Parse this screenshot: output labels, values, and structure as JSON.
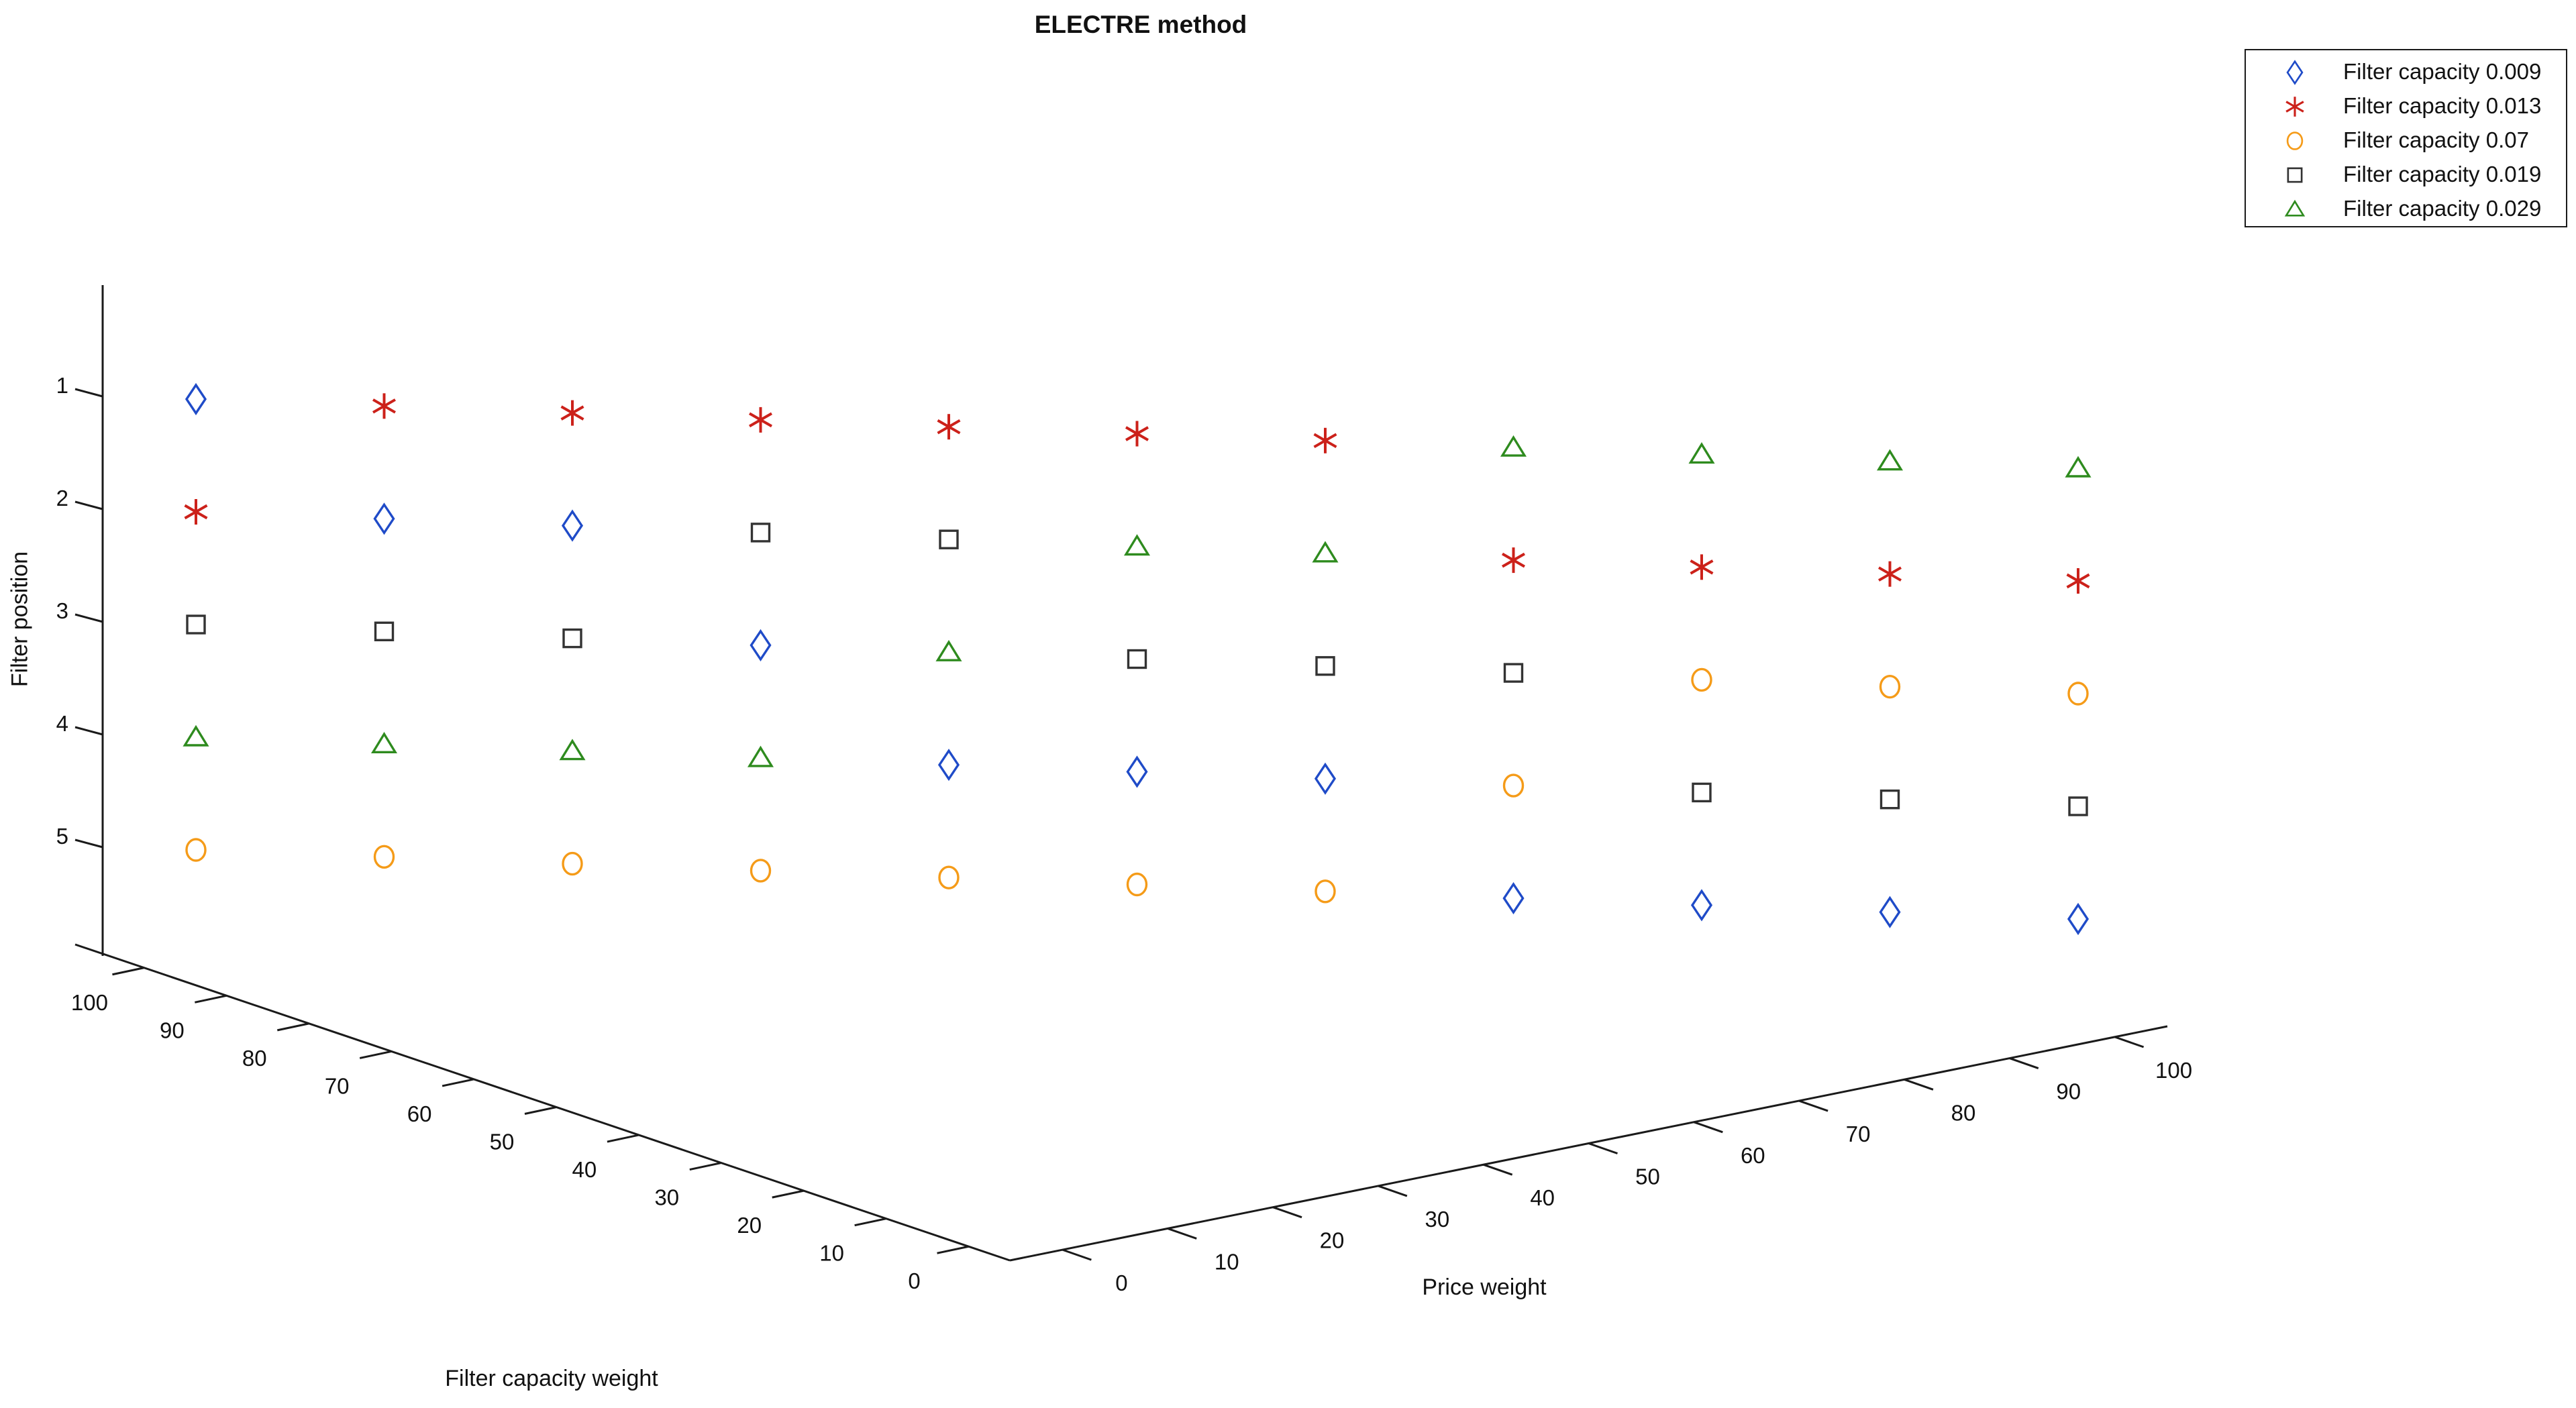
{
  "title": "ELECTRE method",
  "axes": {
    "x": {
      "label": "Price weight",
      "ticks": [
        0,
        10,
        20,
        30,
        40,
        50,
        60,
        70,
        80,
        90,
        100
      ]
    },
    "y": {
      "label": "Filter capacity weight",
      "ticks": [
        100,
        90,
        80,
        70,
        60,
        50,
        40,
        30,
        20,
        10,
        0
      ]
    },
    "z": {
      "label": "Filter position",
      "ticks": [
        1,
        2,
        3,
        4,
        5
      ]
    }
  },
  "legend": {
    "entries": [
      {
        "label": "Filter capacity 0.009",
        "marker": "diamond",
        "color": "#1F4BC8"
      },
      {
        "label": "Filter capacity 0.013",
        "marker": "asterisk",
        "color": "#CC211A"
      },
      {
        "label": "Filter capacity 0.07",
        "marker": "circle",
        "color": "#F59B18"
      },
      {
        "label": "Filter capacity 0.019",
        "marker": "square",
        "color": "#333333"
      },
      {
        "label": "Filter capacity 0.029",
        "marker": "triangle",
        "color": "#2E8B1E"
      }
    ]
  },
  "chart_data": {
    "type": "scatter",
    "subtype": "3d-scatter",
    "title": "ELECTRE method",
    "xlabel": "Price weight",
    "ylabel": "Filter capacity weight",
    "zlabel": "Filter position",
    "x_price_weight": [
      0,
      10,
      20,
      30,
      40,
      50,
      60,
      70,
      80,
      90,
      100
    ],
    "y_capacity_weight": [
      100,
      90,
      80,
      70,
      60,
      50,
      40,
      30,
      20,
      10,
      0
    ],
    "xlim": [
      0,
      100
    ],
    "ylim": [
      0,
      100
    ],
    "zlim": [
      1,
      5
    ],
    "z_axis_reversed": true,
    "grid": false,
    "legend_position": "top-right-outside",
    "series": [
      {
        "name": "Filter capacity 0.009",
        "marker": "diamond",
        "color": "#1F4BC8",
        "positions": [
          1,
          2,
          2,
          3,
          4,
          4,
          4,
          5,
          5,
          5,
          5
        ]
      },
      {
        "name": "Filter capacity 0.013",
        "marker": "asterisk",
        "color": "#CC211A",
        "positions": [
          2,
          1,
          1,
          1,
          1,
          1,
          1,
          2,
          2,
          2,
          2
        ]
      },
      {
        "name": "Filter capacity 0.07",
        "marker": "circle",
        "color": "#F59B18",
        "positions": [
          5,
          5,
          5,
          5,
          5,
          5,
          5,
          4,
          3,
          3,
          3
        ]
      },
      {
        "name": "Filter capacity 0.019",
        "marker": "square",
        "color": "#333333",
        "positions": [
          3,
          3,
          3,
          2,
          2,
          3,
          3,
          3,
          4,
          4,
          4
        ]
      },
      {
        "name": "Filter capacity 0.029",
        "marker": "triangle",
        "color": "#2E8B1E",
        "positions": [
          4,
          4,
          4,
          4,
          3,
          2,
          2,
          1,
          1,
          1,
          1
        ]
      }
    ]
  }
}
